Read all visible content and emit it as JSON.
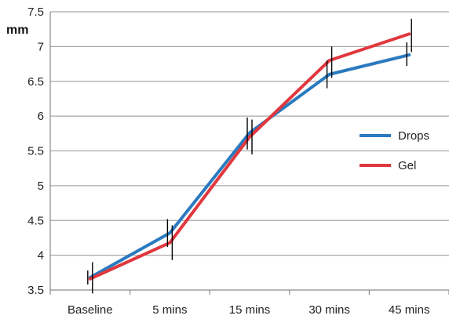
{
  "chart_data": {
    "type": "line",
    "title": "",
    "xlabel": "",
    "ylabel": "mm",
    "categories": [
      "Baseline",
      "5 mins",
      "15 mins",
      "30 mins",
      "45 mins"
    ],
    "ylim": [
      3.5,
      7.5
    ],
    "yticks": [
      "3.5",
      "4",
      "4.5",
      "5",
      "5.5",
      "6",
      "6.5",
      "7",
      "7.5"
    ],
    "grid": true,
    "legend_position": "right",
    "series": [
      {
        "name": "Drops",
        "color": "#2a7abf",
        "values": [
          3.68,
          4.32,
          5.76,
          6.6,
          6.88
        ],
        "error_low": [
          3.58,
          4.12,
          5.52,
          6.4,
          6.72
        ],
        "error_high": [
          3.78,
          4.52,
          5.98,
          6.8,
          7.06
        ]
      },
      {
        "name": "Gel",
        "color": "#e0383e",
        "values": [
          3.66,
          4.18,
          5.7,
          6.8,
          7.18
        ],
        "error_low": [
          3.45,
          3.93,
          5.45,
          6.55,
          6.92
        ],
        "error_high": [
          3.9,
          4.43,
          5.95,
          7.0,
          7.4
        ]
      }
    ]
  }
}
